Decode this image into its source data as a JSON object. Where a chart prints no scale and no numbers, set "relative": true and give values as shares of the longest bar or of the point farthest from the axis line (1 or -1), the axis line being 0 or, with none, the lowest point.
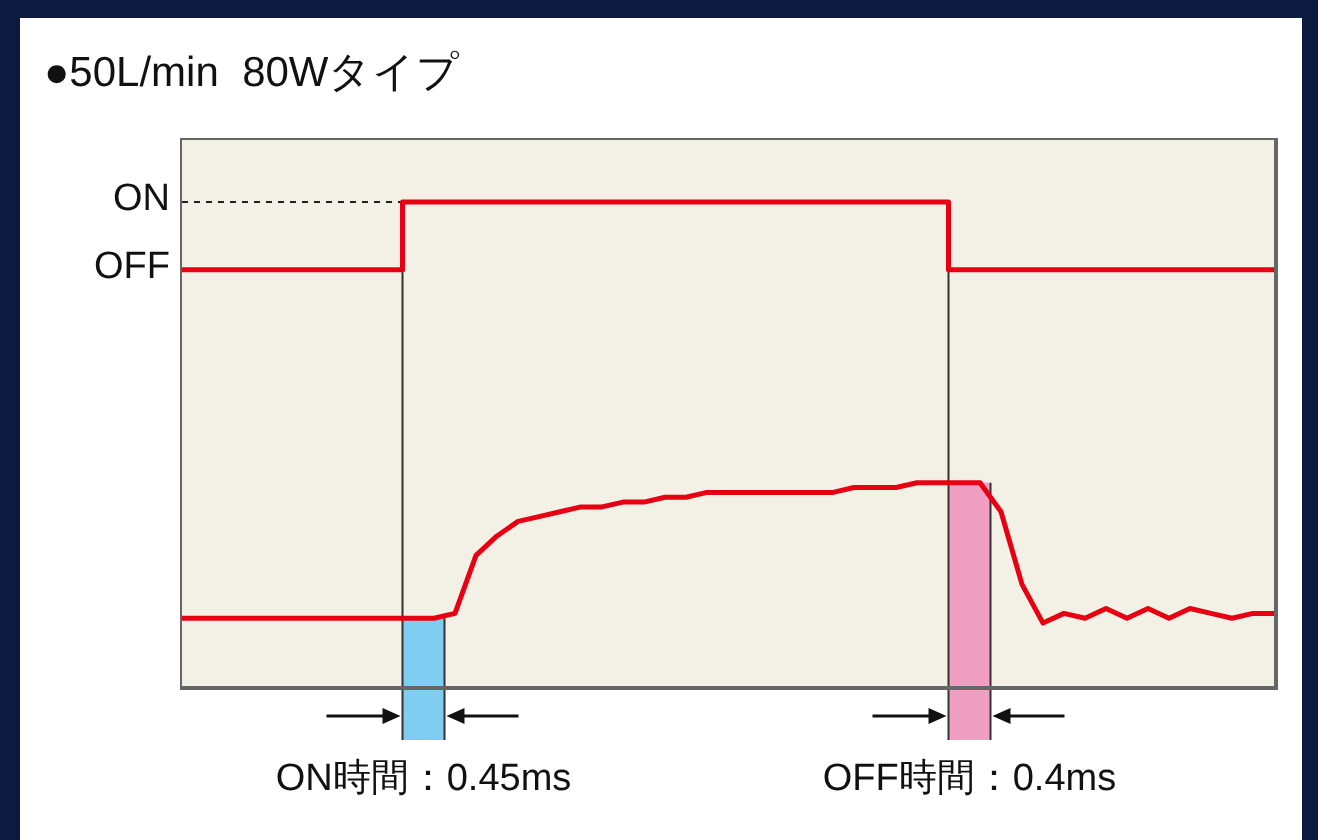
{
  "chart_data": {
    "type": "line",
    "title": "●50L/min  80Wタイプ",
    "relative": true,
    "grid": false,
    "legend": false,
    "marker": "none",
    "line_style": "solid",
    "categories": [
      null,
      null,
      null,
      null,
      null,
      null,
      null,
      null,
      null,
      null,
      null,
      null,
      null,
      null,
      null,
      null,
      null,
      null,
      null,
      null,
      null,
      null,
      null,
      null,
      null,
      null,
      null,
      null,
      null,
      null,
      null,
      null,
      null,
      null,
      null,
      null,
      null,
      null,
      null,
      null,
      null,
      null,
      null,
      null,
      null,
      null,
      null,
      null,
      null,
      null,
      null,
      null,
      null
    ],
    "series": [
      {
        "type": "step",
        "color": "#e60012",
        "values": [
          0.86,
          0.86,
          0.86,
          0.86,
          0.86,
          0.86,
          0.86,
          0.86,
          0.86,
          0.86,
          0.86,
          1,
          1,
          1,
          1,
          1,
          1,
          1,
          1,
          1,
          1,
          1,
          1,
          1,
          1,
          1,
          1,
          1,
          1,
          1,
          1,
          1,
          1,
          1,
          1,
          1,
          1,
          0.86,
          0.86,
          0.86,
          0.86,
          0.86,
          0.86,
          0.86,
          0.86,
          0.86,
          0.86,
          0.86,
          0.86,
          0.86,
          0.86,
          0.86,
          0.86
        ]
      },
      {
        "type": "line",
        "color": "#e60012",
        "values": [
          0.14,
          0.14,
          0.14,
          0.14,
          0.14,
          0.14,
          0.14,
          0.14,
          0.14,
          0.14,
          0.14,
          0.14,
          0.14,
          0.15,
          0.27,
          0.31,
          0.34,
          0.35,
          0.36,
          0.37,
          0.37,
          0.38,
          0.38,
          0.39,
          0.39,
          0.4,
          0.4,
          0.4,
          0.4,
          0.4,
          0.4,
          0.4,
          0.41,
          0.41,
          0.41,
          0.42,
          0.42,
          0.42,
          0.42,
          0.36,
          0.21,
          0.13,
          0.15,
          0.14,
          0.16,
          0.14,
          0.16,
          0.14,
          0.16,
          0.15,
          0.14,
          0.15,
          0.15
        ]
      }
    ],
    "annotations": [
      "ON",
      "OFF",
      "ON時間：0.45ms",
      "OFF時間：0.4ms"
    ]
  }
}
